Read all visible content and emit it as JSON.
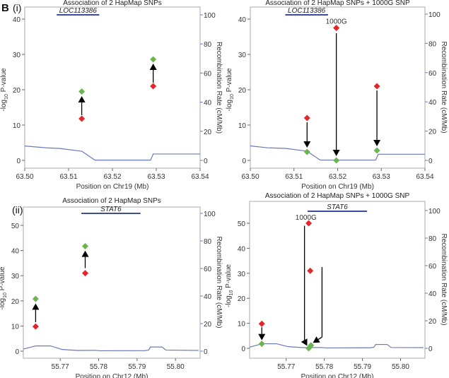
{
  "figure_label": "B",
  "colors": {
    "before": "#e3262a",
    "after": "#6db34f",
    "recomb": "#6b78bd",
    "gene": "#3e4ca0",
    "arrow": "#000000"
  },
  "chart_data": [
    {
      "type": "scatter",
      "panel_label": "(i)",
      "title": "Association of 2 HapMap SNPs",
      "xlabel": "Position on Chr19 (Mb)",
      "ylabel": "-log10 P-value",
      "ylabel_main": "-log",
      "ylabel_sub": "10",
      "ylabel_rest": " P-value",
      "y2label": "Recombination Rate (cM/Mb)",
      "xlim": [
        63.5,
        63.54
      ],
      "ylim": [
        0,
        40
      ],
      "y2lim": [
        0,
        100
      ],
      "xticks": [
        "63.50",
        "63.51",
        "63.52",
        "63.53",
        "63.54"
      ],
      "yticks": [
        "0",
        "10",
        "20",
        "30",
        "40"
      ],
      "y2ticks": [
        "0",
        "20",
        "40",
        "60",
        "80",
        "100"
      ],
      "gene": {
        "name": "LOC113386",
        "start": 63.5073,
        "end": 63.517
      },
      "points_before": [
        {
          "x": 63.513,
          "y": 11.8
        },
        {
          "x": 63.5293,
          "y": 21.0
        }
      ],
      "points_after": [
        {
          "x": 63.513,
          "y": 19.5
        },
        {
          "x": 63.5293,
          "y": 28.6
        }
      ],
      "arrows": [
        {
          "x1": 63.513,
          "y1": 12.8,
          "x2": 63.513,
          "y2": 18.2
        },
        {
          "x1": 63.5293,
          "y1": 22.0,
          "x2": 63.5293,
          "y2": 27.4
        }
      ],
      "recombination": [
        [
          63.5,
          9.9
        ],
        [
          63.505,
          8.6
        ],
        [
          63.508,
          8.2
        ],
        [
          63.513,
          6.3
        ],
        [
          63.516,
          0.2
        ],
        [
          63.5287,
          0.2
        ],
        [
          63.5293,
          4.4
        ],
        [
          63.54,
          4.4
        ]
      ],
      "annotations": []
    },
    {
      "type": "scatter",
      "panel_label": "",
      "title": "Association of 2 HapMap SNPs + 1000G SNP",
      "xlabel": "Position on Chr19 (Mb)",
      "ylabel": "-log10 P-value",
      "ylabel_main": "-log",
      "ylabel_sub": "10",
      "ylabel_rest": " P-value",
      "y2label": "Recombination Rate (cM/Mb)",
      "xlim": [
        63.5,
        63.54
      ],
      "ylim": [
        0,
        40
      ],
      "y2lim": [
        0,
        100
      ],
      "xticks": [
        "63.50",
        "63.51",
        "63.52",
        "63.53",
        "63.54"
      ],
      "yticks": [
        "0",
        "10",
        "20",
        "30",
        "40"
      ],
      "y2ticks": [
        "0",
        "20",
        "40",
        "60",
        "80",
        "100"
      ],
      "gene": {
        "name": "LOC113386",
        "start": 63.508,
        "end": 63.5178
      },
      "points_before": [
        {
          "x": 63.513,
          "y": 12.0
        },
        {
          "x": 63.5197,
          "y": 37.5
        },
        {
          "x": 63.529,
          "y": 21.0
        }
      ],
      "points_after": [
        {
          "x": 63.513,
          "y": 2.4
        },
        {
          "x": 63.5197,
          "y": 0.0
        },
        {
          "x": 63.529,
          "y": 2.8
        }
      ],
      "arrows": [
        {
          "x1": 63.513,
          "y1": 10.8,
          "x2": 63.513,
          "y2": 3.6
        },
        {
          "x1": 63.5197,
          "y1": 36.0,
          "x2": 63.5197,
          "y2": 1.2
        },
        {
          "x1": 63.529,
          "y1": 19.8,
          "x2": 63.529,
          "y2": 4.0
        }
      ],
      "recombination": [
        [
          63.5,
          9.9
        ],
        [
          63.504,
          8.6
        ],
        [
          63.508,
          8.2
        ],
        [
          63.513,
          6.3
        ],
        [
          63.516,
          0.2
        ],
        [
          63.5287,
          0.2
        ],
        [
          63.5293,
          4.2
        ],
        [
          63.54,
          4.2
        ]
      ],
      "annotations": [
        {
          "text": "1000G",
          "x": 63.5197,
          "y": 39.5
        }
      ]
    },
    {
      "type": "scatter",
      "panel_label": "(ii)",
      "title": "Association of 2 HapMap SNPs",
      "xlabel": "Position on Chr12 (Mb)",
      "ylabel": "-log10 P-value",
      "ylabel_main": "-log",
      "ylabel_sub": "10",
      "ylabel_rest": " P-value",
      "y2label": "Recombination Rate (cM/Mb)",
      "xlim": [
        55.7604,
        55.8064
      ],
      "ylim": [
        0,
        50
      ],
      "y2lim": [
        0,
        100
      ],
      "xticks": [
        "55.77",
        "55.78",
        "55.79",
        "55.80"
      ],
      "yticks": [
        "0",
        "10",
        "20",
        "30",
        "40",
        "50"
      ],
      "y2ticks": [
        "0",
        "20",
        "40",
        "60",
        "80",
        "100"
      ],
      "gene": {
        "name": "STAT6",
        "start": 55.7755,
        "end": 55.7909
      },
      "points_before": [
        {
          "x": 55.7636,
          "y": 9.8
        },
        {
          "x": 55.7765,
          "y": 31.0
        }
      ],
      "points_after": [
        {
          "x": 55.7636,
          "y": 20.8
        },
        {
          "x": 55.7765,
          "y": 41.7
        }
      ],
      "arrows": [
        {
          "x1": 55.7636,
          "y1": 11.5,
          "x2": 55.7636,
          "y2": 19.0
        },
        {
          "x1": 55.7765,
          "y1": 33.0,
          "x2": 55.7765,
          "y2": 40.0
        }
      ],
      "recombination": [
        [
          55.7604,
          1.5
        ],
        [
          55.7636,
          3.8
        ],
        [
          55.7675,
          3.8
        ],
        [
          55.7705,
          1.2
        ],
        [
          55.7745,
          0.5
        ],
        [
          55.779,
          0.6
        ],
        [
          55.7805,
          0.3
        ],
        [
          55.792,
          0.4
        ],
        [
          55.793,
          0.8
        ],
        [
          55.7935,
          3.0
        ],
        [
          55.7965,
          3.0
        ],
        [
          55.7975,
          0.8
        ],
        [
          55.806,
          0.5
        ]
      ],
      "annotations": []
    },
    {
      "type": "scatter",
      "panel_label": "",
      "title": "Association of 2 HapMap SNPs + 1000G SNP",
      "xlabel": "Position on Chr12 (Mb)",
      "ylabel": "-log10 P-value",
      "ylabel_main": "-log",
      "ylabel_sub": "10",
      "ylabel_rest": " P-value",
      "y2label": "Recombination Rate (cM/Mb)",
      "xlim": [
        55.7604,
        55.8064
      ],
      "ylim": [
        0,
        50
      ],
      "y2lim": [
        0,
        100
      ],
      "xticks": [
        "55.77",
        "55.78",
        "55.79",
        "55.80"
      ],
      "yticks": [
        "0",
        "10",
        "20",
        "30",
        "40",
        "50"
      ],
      "y2ticks": [
        "0",
        "20",
        "40",
        "60",
        "80",
        "100"
      ],
      "gene": {
        "name": "STAT6",
        "start": 55.7756,
        "end": 55.7912
      },
      "points_before": [
        {
          "x": 55.7636,
          "y": 9.8
        },
        {
          "x": 55.7759,
          "y": 50.0
        },
        {
          "x": 55.7763,
          "y": 31.0
        }
      ],
      "points_after": [
        {
          "x": 55.7636,
          "y": 1.8
        },
        {
          "x": 55.7759,
          "y": 0.0
        },
        {
          "x": 55.7765,
          "y": 1.2
        }
      ],
      "arrows": [
        {
          "x1": 55.7636,
          "y1": 8.4,
          "x2": 55.7636,
          "y2": 3.2,
          "bend": null
        },
        {
          "x1": 55.7748,
          "y1": 49.0,
          "bx": 55.7748,
          "by": 3.0,
          "x2": 55.7755,
          "y2": 1.0
        },
        {
          "x1": 55.7794,
          "y1": 32.5,
          "bx": 55.7794,
          "by": 4.5,
          "x2": 55.777,
          "y2": 2.2
        }
      ],
      "recombination": [
        [
          55.7604,
          0.8
        ],
        [
          55.7636,
          3.3
        ],
        [
          55.7675,
          3.3
        ],
        [
          55.7705,
          1.2
        ],
        [
          55.7745,
          0.5
        ],
        [
          55.779,
          0.6
        ],
        [
          55.7805,
          0.3
        ],
        [
          55.792,
          0.4
        ],
        [
          55.793,
          0.8
        ],
        [
          55.7935,
          2.8
        ],
        [
          55.7965,
          2.8
        ],
        [
          55.7975,
          0.6
        ],
        [
          55.806,
          0.5
        ]
      ],
      "annotations": [
        {
          "text": "1000G",
          "x": 55.7752,
          "y": 52.5
        }
      ]
    }
  ]
}
